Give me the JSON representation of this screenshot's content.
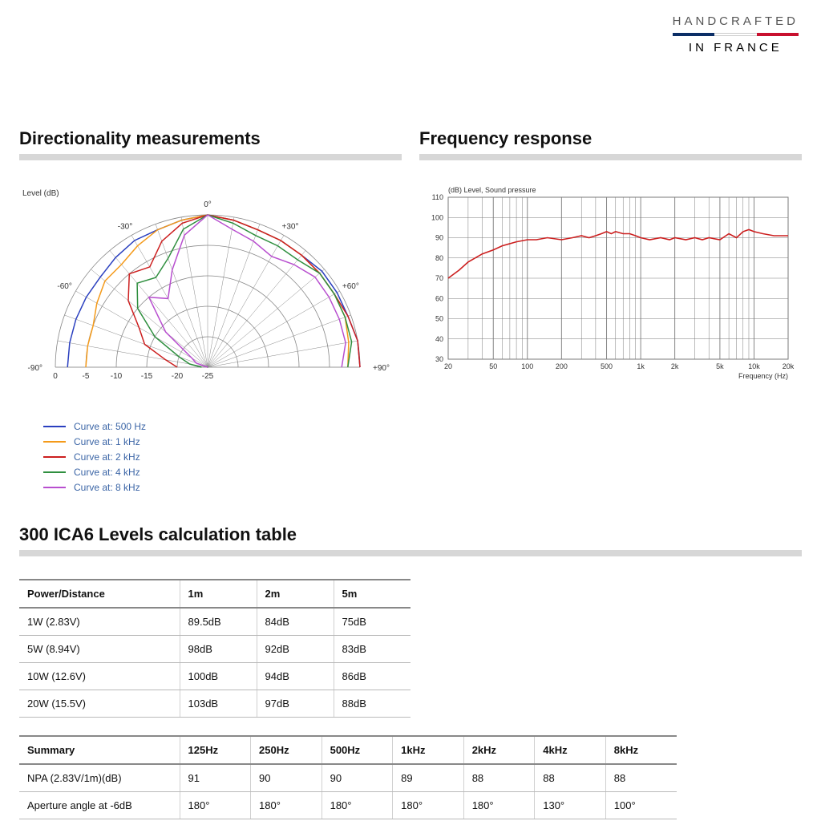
{
  "brand": {
    "line1": "HANDCRAFTED",
    "line2": "IN FRANCE",
    "flag_colors": [
      "#0b2e66",
      "#ffffff",
      "#c8102e"
    ]
  },
  "polar_chart": {
    "title": "Directionality measurements",
    "type": "polar-line",
    "unit_label": "Level (dB)",
    "center_top_label": "0°",
    "angle_ticks_deg": [
      -90,
      -60,
      -30,
      0,
      30,
      60,
      90
    ],
    "angle_labels": [
      "+90°",
      "+60°",
      "+30°",
      "0°",
      "-30°",
      "-60°",
      "-90°"
    ],
    "radial_ticks_db": [
      0,
      -5,
      -10,
      -15,
      -20,
      -25
    ],
    "grid_color": "#888888",
    "axis_text_color": "#333333",
    "axis_fontsize": 10,
    "legend": [
      {
        "label": "Curve at: 500 Hz",
        "color": "#2a3fbf"
      },
      {
        "label": "Curve at: 1 kHz",
        "color": "#f49a1a"
      },
      {
        "label": "Curve at: 2 kHz",
        "color": "#cc1f1f"
      },
      {
        "label": "Curve at: 4 kHz",
        "color": "#2f8f3f"
      },
      {
        "label": "Curve at: 8 kHz",
        "color": "#b84fcf"
      }
    ],
    "series": {
      "500Hz": {
        "color": "#2a3fbf",
        "values_db": {
          "-90": 0,
          "-80": 0,
          "-70": -0.5,
          "-60": -0.5,
          "-50": -0.5,
          "-40": -1,
          "-30": -1,
          "-20": -1,
          "-10": -0.5,
          "0": 0,
          "10": -0.5,
          "20": -1,
          "30": -1,
          "40": -1.5,
          "50": -2,
          "60": -2,
          "70": -2,
          "80": -2,
          "90": -2
        }
      },
      "1kHz": {
        "color": "#f49a1a",
        "values_db": {
          "-90": -2,
          "-80": -1.5,
          "-70": -1,
          "-60": -1,
          "-50": -1,
          "-40": -1,
          "-30": -1,
          "-20": -1,
          "-10": -0.5,
          "0": 0,
          "10": -0.5,
          "20": -1,
          "30": -2,
          "40": -3,
          "50": -3,
          "60": -4,
          "70": -5,
          "80": -5,
          "90": -5
        }
      },
      "2kHz": {
        "color": "#cc1f1f",
        "values_db": {
          "-90": 0,
          "-80": 0,
          "-70": -0.5,
          "-60": -1,
          "-50": -1,
          "-40": -1,
          "-30": -1,
          "-20": -1,
          "-10": -0.5,
          "0": 0,
          "10": -1,
          "20": -3,
          "30": -6,
          "40": -5,
          "50": -8,
          "60": -12,
          "70": -14,
          "80": -18,
          "90": -20
        }
      },
      "4kHz": {
        "color": "#2f8f3f",
        "values_db": {
          "-90": -2,
          "-80": -1,
          "-70": -1,
          "-60": -1,
          "-50": -1,
          "-40": -2,
          "-30": -2,
          "-20": -2,
          "-10": -1,
          "0": 0,
          "10": -2,
          "20": -6,
          "30": -8,
          "40": -7,
          "50": -10,
          "60": -15,
          "70": -20,
          "80": -22,
          "90": -24
        }
      },
      "8kHz": {
        "color": "#b84fcf",
        "values_db": {
          "-90": -3,
          "-80": -2,
          "-70": -2,
          "-60": -2,
          "-50": -2,
          "-40": -3,
          "-30": -4,
          "-20": -3,
          "-10": -2,
          "0": 0,
          "10": -3,
          "20": -8,
          "30": -12,
          "40": -10,
          "50": -16,
          "60": -22,
          "70": -23,
          "80": -25,
          "90": -25
        }
      }
    }
  },
  "freq_chart": {
    "title": "Frequency response",
    "type": "line-logx",
    "y_label": "(dB) Level, Sound pressure",
    "x_label": "Frequency (Hz)",
    "x_min": 20,
    "x_max": 20000,
    "x_ticks": [
      20,
      50,
      100,
      200,
      500,
      1000,
      2000,
      5000,
      10000,
      20000
    ],
    "x_tick_labels": [
      "20",
      "50",
      "100",
      "200",
      "500",
      "1k",
      "2k",
      "5k",
      "10k",
      "20k"
    ],
    "x_minor_lines": [
      30,
      40,
      60,
      70,
      80,
      90,
      300,
      400,
      600,
      700,
      800,
      900,
      3000,
      4000,
      6000,
      7000,
      8000,
      9000
    ],
    "y_min": 30,
    "y_max": 110,
    "y_step": 10,
    "grid_color": "#7a7a7a",
    "axis_text_color": "#333333",
    "axis_fontsize": 9,
    "series_color": "#cc1f1f",
    "data": [
      [
        20,
        70
      ],
      [
        25,
        74
      ],
      [
        30,
        78
      ],
      [
        40,
        82
      ],
      [
        50,
        84
      ],
      [
        60,
        86
      ],
      [
        80,
        88
      ],
      [
        100,
        89
      ],
      [
        120,
        89
      ],
      [
        150,
        90
      ],
      [
        200,
        89
      ],
      [
        250,
        90
      ],
      [
        300,
        91
      ],
      [
        350,
        90
      ],
      [
        400,
        91
      ],
      [
        450,
        92
      ],
      [
        500,
        93
      ],
      [
        550,
        92
      ],
      [
        600,
        93
      ],
      [
        700,
        92
      ],
      [
        800,
        92
      ],
      [
        900,
        91
      ],
      [
        1000,
        90
      ],
      [
        1200,
        89
      ],
      [
        1500,
        90
      ],
      [
        1800,
        89
      ],
      [
        2000,
        90
      ],
      [
        2500,
        89
      ],
      [
        3000,
        90
      ],
      [
        3500,
        89
      ],
      [
        4000,
        90
      ],
      [
        5000,
        89
      ],
      [
        6000,
        92
      ],
      [
        7000,
        90
      ],
      [
        8000,
        93
      ],
      [
        9000,
        94
      ],
      [
        10000,
        93
      ],
      [
        12000,
        92
      ],
      [
        15000,
        91
      ],
      [
        18000,
        91
      ],
      [
        20000,
        91
      ]
    ]
  },
  "tables_title": "300 ICA6 Levels calculation table",
  "table1": {
    "columns": [
      "Power/Distance",
      "1m",
      "2m",
      "5m"
    ],
    "rows": [
      [
        "1W (2.83V)",
        "89.5dB",
        "84dB",
        "75dB"
      ],
      [
        "5W (8.94V)",
        "98dB",
        "92dB",
        "83dB"
      ],
      [
        "10W (12.6V)",
        "100dB",
        "94dB",
        "86dB"
      ],
      [
        "20W (15.5V)",
        "103dB",
        "97dB",
        "88dB"
      ]
    ]
  },
  "table2": {
    "columns": [
      "Summary",
      "125Hz",
      "250Hz",
      "500Hz",
      "1kHz",
      "2kHz",
      "4kHz",
      "8kHz"
    ],
    "rows": [
      [
        "NPA (2.83V/1m)(dB)",
        "91",
        "90",
        "90",
        "89",
        "88",
        "88",
        "88"
      ],
      [
        "Aperture angle at -6dB",
        "180°",
        "180°",
        "180°",
        "180°",
        "180°",
        "130°",
        "100°"
      ]
    ]
  }
}
